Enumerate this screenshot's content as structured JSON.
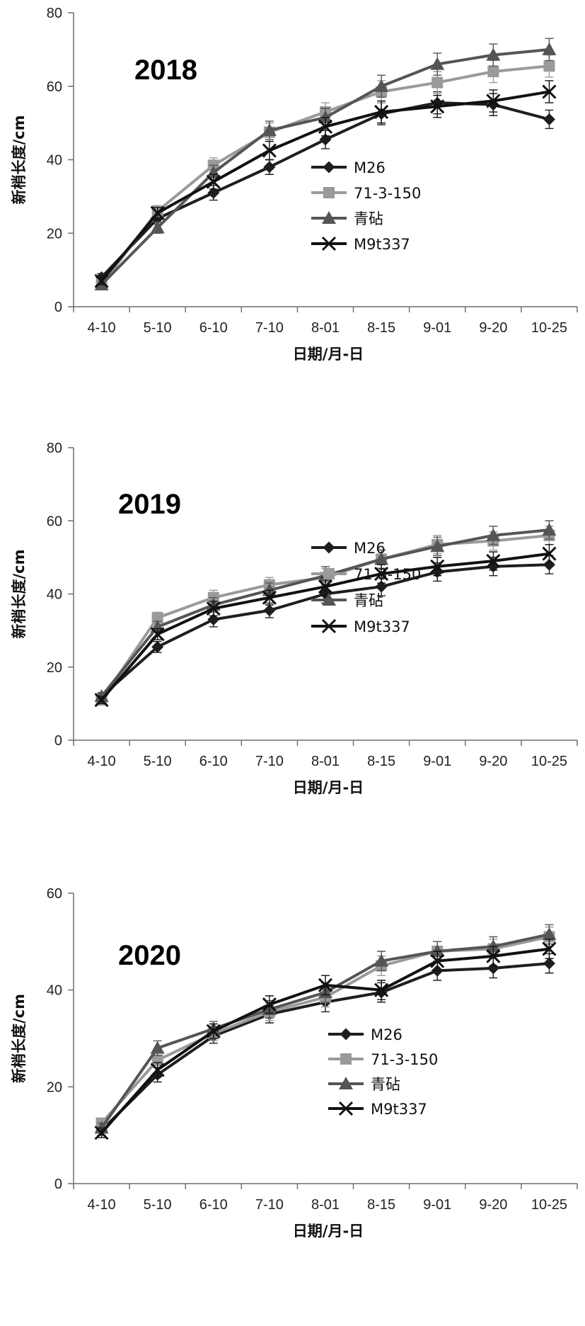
{
  "figure": {
    "series_styles": [
      {
        "name": "M26",
        "color": "#1e1e1e",
        "marker": "diamond"
      },
      {
        "name": "71-3-150",
        "color": "#9a9a9a",
        "marker": "square"
      },
      {
        "name": "青砧",
        "color": "#555555",
        "marker": "triangle"
      },
      {
        "name": "M9t337",
        "color": "#111111",
        "marker": "x"
      }
    ]
  },
  "chart_data": [
    {
      "type": "line",
      "title": "2018",
      "xlabel": "日期/月-日",
      "ylabel": "新梢长度/cm",
      "categories": [
        "4-10",
        "5-10",
        "6-10",
        "7-10",
        "8-01",
        "8-15",
        "9-01",
        "9-20",
        "10-25"
      ],
      "ylim": [
        0,
        80
      ],
      "yticks": [
        0,
        20,
        40,
        60,
        80
      ],
      "grid": false,
      "legend_position": "right",
      "series": [
        {
          "name": "M26",
          "values": [
            8,
            24,
            31,
            38,
            45.5,
            52.5,
            55.5,
            55,
            51
          ],
          "errors": [
            1,
            1.5,
            2,
            2,
            2.5,
            3,
            3,
            3,
            2.5
          ]
        },
        {
          "name": "71-3-150",
          "values": [
            6,
            26,
            38.5,
            47.5,
            53,
            58.5,
            61,
            64,
            65.5
          ],
          "errors": [
            1,
            1.5,
            2,
            2.5,
            2.5,
            3,
            3,
            3,
            3
          ]
        },
        {
          "name": "青砧",
          "values": [
            6,
            21.5,
            36.5,
            48,
            51.5,
            60,
            66,
            68.5,
            70
          ],
          "errors": [
            1,
            1.5,
            2,
            2.5,
            2.5,
            3,
            3,
            3,
            3
          ]
        },
        {
          "name": "M9t337",
          "values": [
            7,
            25.5,
            34,
            42.5,
            49,
            53,
            54.5,
            56,
            58.5
          ],
          "errors": [
            1,
            1.5,
            2,
            2.5,
            2.5,
            3,
            3,
            3,
            3
          ]
        }
      ]
    },
    {
      "type": "line",
      "title": "2019",
      "xlabel": "日期/月-日",
      "ylabel": "新梢长度/cm",
      "categories": [
        "4-10",
        "5-10",
        "6-10",
        "7-10",
        "8-01",
        "8-15",
        "9-01",
        "9-20",
        "10-25"
      ],
      "ylim": [
        0,
        80
      ],
      "yticks": [
        0,
        20,
        40,
        60,
        80
      ],
      "grid": false,
      "legend_position": "right",
      "series": [
        {
          "name": "M26",
          "values": [
            12,
            25.5,
            33,
            35.5,
            40,
            42,
            46,
            47.5,
            48
          ],
          "errors": [
            1,
            1.5,
            2,
            2,
            2.5,
            2.5,
            2.5,
            2.5,
            2.5
          ]
        },
        {
          "name": "71-3-150",
          "values": [
            11,
            33.5,
            39,
            42.5,
            44.5,
            49.5,
            53.5,
            54.5,
            56
          ],
          "errors": [
            1,
            1.5,
            2,
            2,
            2.5,
            2.5,
            2.5,
            2.5,
            2.5
          ]
        },
        {
          "name": "青砧",
          "values": [
            12,
            31,
            37,
            41,
            45,
            49.5,
            53,
            56,
            57.5
          ],
          "errors": [
            1,
            1.5,
            2,
            2,
            2.5,
            2.5,
            2.5,
            2.5,
            2.5
          ]
        },
        {
          "name": "M9t337",
          "values": [
            11,
            29,
            36,
            39,
            42,
            45.5,
            47.5,
            49,
            51
          ],
          "errors": [
            1,
            1.5,
            2,
            2,
            2.5,
            2.5,
            2.5,
            2.5,
            2.5
          ]
        }
      ]
    },
    {
      "type": "line",
      "title": "2020",
      "xlabel": "日期/月-日",
      "ylabel": "新梢长度/cm",
      "categories": [
        "4-10",
        "5-10",
        "6-10",
        "7-10",
        "8-01",
        "8-15",
        "9-01",
        "9-20",
        "10-25"
      ],
      "ylim": [
        0,
        60
      ],
      "yticks": [
        0,
        20,
        40,
        60
      ],
      "grid": false,
      "legend_position": "right",
      "series": [
        {
          "name": "M26",
          "values": [
            11,
            22.5,
            30.5,
            35,
            37.5,
            39.5,
            44,
            44.5,
            45.5
          ],
          "errors": [
            1,
            1.5,
            1.5,
            1.8,
            2,
            2,
            2,
            2,
            2
          ]
        },
        {
          "name": "71-3-150",
          "values": [
            12.5,
            25.5,
            31,
            35.5,
            38.5,
            45,
            48,
            48.5,
            51
          ],
          "errors": [
            1,
            1.5,
            1.5,
            1.8,
            2,
            2,
            2,
            2,
            2
          ]
        },
        {
          "name": "青砧",
          "values": [
            11.5,
            28,
            32,
            36,
            39.5,
            46,
            48,
            49,
            51.5
          ],
          "errors": [
            1,
            1.5,
            1.5,
            1.8,
            2,
            2,
            2,
            2,
            2
          ]
        },
        {
          "name": "M9t337",
          "values": [
            10.5,
            23.5,
            31.5,
            37,
            41,
            40,
            46,
            47,
            48.5
          ],
          "errors": [
            1,
            1.5,
            1.5,
            1.8,
            2,
            2,
            2,
            2,
            2
          ]
        }
      ]
    }
  ]
}
